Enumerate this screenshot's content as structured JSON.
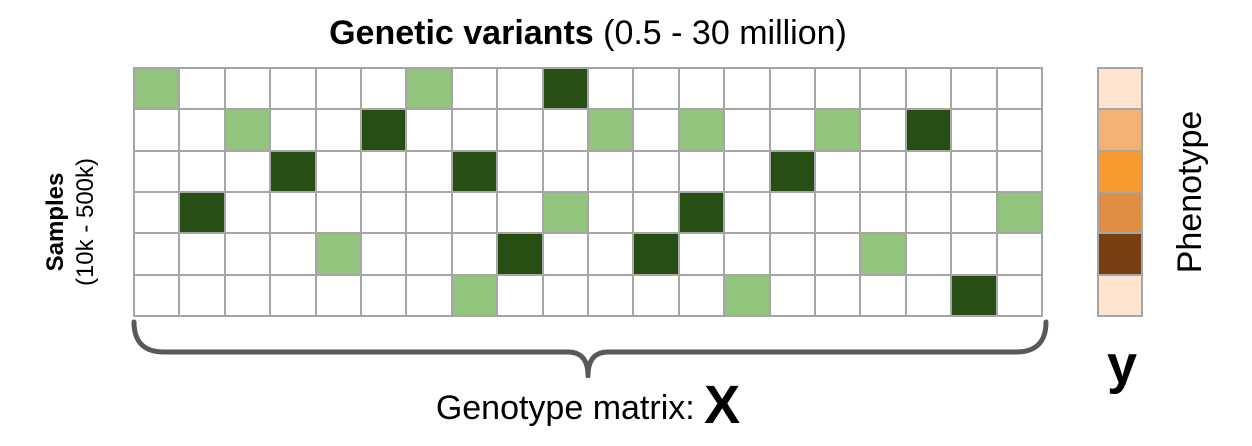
{
  "title": {
    "bold": "Genetic variants",
    "normal": "(0.5 - 30 million)"
  },
  "samples_label": {
    "line1": "Samples",
    "line2": "(10k - 500k)"
  },
  "phenotype_label": "Phenotype",
  "matrix_label": {
    "text": "Genotype matrix:",
    "symbol": "X"
  },
  "phenotype_symbol": "y",
  "colors": {
    "empty": "#ffffff",
    "light_green": "#93c47d",
    "dark_green": "#274e13",
    "grid_line": "#a6a6a6",
    "brace": "#595959"
  },
  "genotype_matrix": [
    [
      1,
      0,
      0,
      0,
      0,
      0,
      1,
      0,
      0,
      2,
      0,
      0,
      0,
      0,
      0,
      0,
      0,
      0,
      0,
      0
    ],
    [
      0,
      0,
      1,
      0,
      0,
      2,
      0,
      0,
      0,
      0,
      1,
      0,
      1,
      0,
      0,
      1,
      0,
      2,
      0,
      0
    ],
    [
      0,
      0,
      0,
      2,
      0,
      0,
      0,
      2,
      0,
      0,
      0,
      0,
      0,
      0,
      2,
      0,
      0,
      0,
      0,
      0
    ],
    [
      0,
      2,
      0,
      0,
      0,
      0,
      0,
      0,
      0,
      1,
      0,
      0,
      2,
      0,
      0,
      0,
      0,
      0,
      0,
      1
    ],
    [
      0,
      0,
      0,
      0,
      1,
      0,
      0,
      0,
      2,
      0,
      0,
      2,
      0,
      0,
      0,
      0,
      1,
      0,
      0,
      0
    ],
    [
      0,
      0,
      0,
      0,
      0,
      0,
      0,
      1,
      0,
      0,
      0,
      0,
      0,
      1,
      0,
      0,
      0,
      0,
      2,
      0
    ]
  ],
  "phenotype_colors": [
    "#fce4d0",
    "#f4b274",
    "#f89a2e",
    "#e08e44",
    "#783f12",
    "#fce4d0"
  ]
}
